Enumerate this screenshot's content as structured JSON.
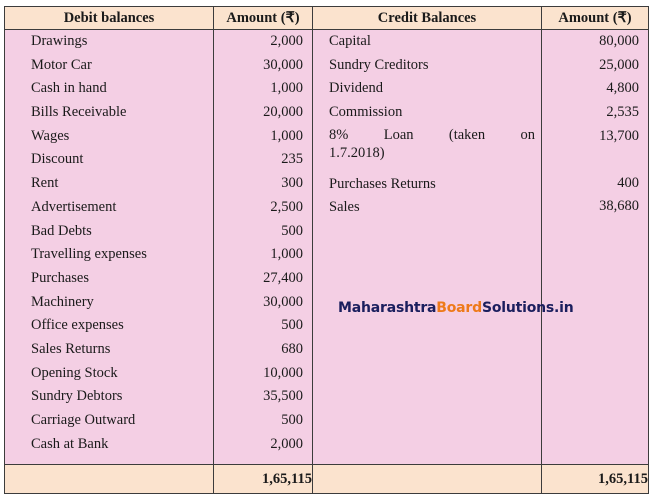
{
  "headers": {
    "debit": "Debit balances",
    "debit_amount": "Amount (₹)",
    "credit": "Credit Balances",
    "credit_amount": "Amount (₹)"
  },
  "debit_rows": [
    {
      "name": "Drawings",
      "amount": "2,000"
    },
    {
      "name": "Motor Car",
      "amount": "30,000"
    },
    {
      "name": "Cash in hand",
      "amount": "1,000"
    },
    {
      "name": "Bills Receivable",
      "amount": "20,000"
    },
    {
      "name": "Wages",
      "amount": "1,000"
    },
    {
      "name": "Discount",
      "amount": "235"
    },
    {
      "name": "Rent",
      "amount": "300"
    },
    {
      "name": "Advertisement",
      "amount": "2,500"
    },
    {
      "name": "Bad Debts",
      "amount": "500"
    },
    {
      "name": "Travelling expenses",
      "amount": "1,000"
    },
    {
      "name": "Purchases",
      "amount": "27,400"
    },
    {
      "name": "Machinery",
      "amount": "30,000"
    },
    {
      "name": "Office expenses",
      "amount": "500"
    },
    {
      "name": "Sales Returns",
      "amount": "680"
    },
    {
      "name": "Opening Stock",
      "amount": "10,000"
    },
    {
      "name": "Sundry Debtors",
      "amount": "35,500"
    },
    {
      "name": "Carriage Outward",
      "amount": "500"
    },
    {
      "name": "Cash at Bank",
      "amount": "2,000"
    }
  ],
  "credit_rows": [
    {
      "name": "Capital",
      "amount": "80,000"
    },
    {
      "name": "Sundry Creditors",
      "amount": "25,000"
    },
    {
      "name": "Dividend",
      "amount": "4,800"
    },
    {
      "name": "Commission",
      "amount": "2,535"
    },
    {
      "name_line1": [
        "8%",
        "Loan",
        "(taken",
        "on"
      ],
      "name_line2": "1.7.2018)",
      "amount": "13,700"
    },
    {
      "name": "Purchases Returns",
      "amount": "400"
    },
    {
      "name": "Sales",
      "amount": "38,680"
    }
  ],
  "totals": {
    "debit": "1,65,115",
    "credit": "1,65,115"
  },
  "watermark": {
    "part1": "Maharashtra",
    "part2": "Board",
    "part3": "Solutions.in"
  }
}
